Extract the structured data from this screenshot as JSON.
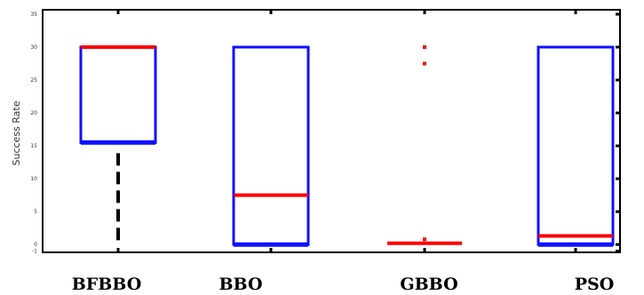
{
  "chart_data": {
    "type": "box",
    "title": "",
    "xlabel": "",
    "ylabel": "Success Rate",
    "ylim": [
      -2,
      35
    ],
    "yticks": [
      "35",
      "30",
      "25",
      "20",
      "15",
      "10",
      "5",
      "0",
      "-1"
    ],
    "categories": [
      "BFBBO",
      "BBO",
      "GBBO",
      "PSO"
    ],
    "grid": false,
    "boxes": [
      {
        "name": "BFBBO",
        "q1": 15.5,
        "median": 30,
        "q3": 30,
        "whisker_low": 0,
        "whisker_high": 30,
        "outliers": []
      },
      {
        "name": "BBO",
        "q1": 0,
        "median": 7.5,
        "q3": 30,
        "whisker_low": 0,
        "whisker_high": 30,
        "outliers": []
      },
      {
        "name": "GBBO",
        "q1": 0.2,
        "median": 0.2,
        "q3": 0.2,
        "whisker_low": 0.2,
        "whisker_high": 0.2,
        "outliers": [
          0.8,
          27.5,
          30
        ]
      },
      {
        "name": "PSO",
        "q1": 0,
        "median": 1.3,
        "q3": 30,
        "whisker_low": 0,
        "whisker_high": 30,
        "outliers": []
      }
    ],
    "colors": {
      "box": "#1010ff",
      "median": "#ff0000",
      "whisker": "#000000",
      "outlier": "#ff0000",
      "axis": "#000000"
    }
  }
}
